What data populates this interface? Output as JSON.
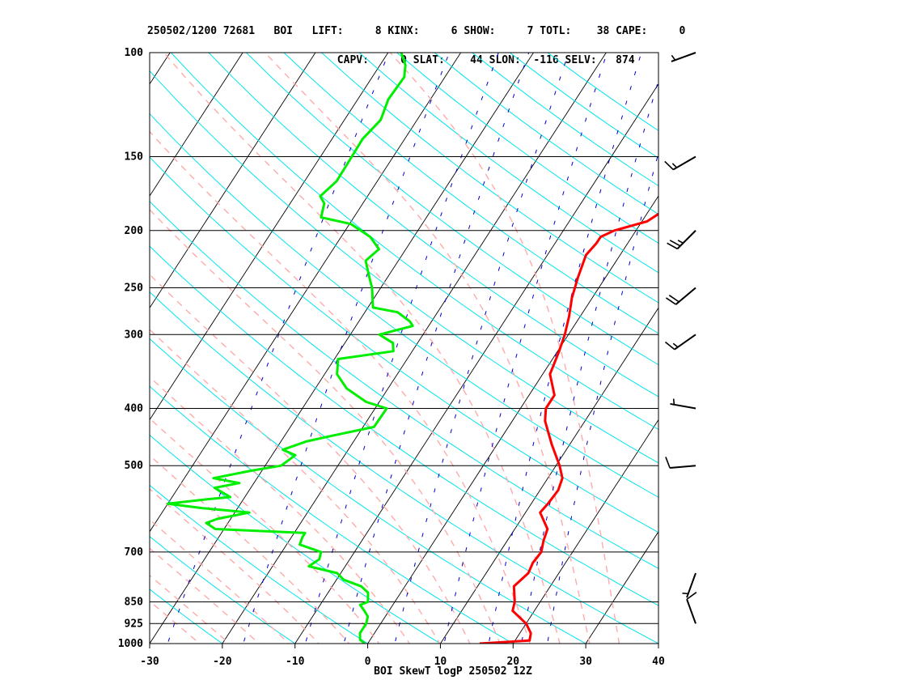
{
  "header": {
    "line1": "250502/1200 72681   BOI   LIFT:     8 KINX:     6 SHOW:     7 TOTL:    38 CAPE:     0",
    "line2": "                              CAPV:     0 SLAT:    44 SLON:  -116 SELV:   874"
  },
  "chart_data": {
    "type": "line",
    "title": "BOI SkewT logP 250502 12Z",
    "xlabel": "",
    "ylabel": "",
    "x_range": [
      -30,
      40
    ],
    "p_range": [
      1000,
      100
    ],
    "x_ticks": [
      "-30",
      "-20",
      "-10",
      "0",
      "10",
      "20",
      "30",
      "40"
    ],
    "p_ticks": [
      "100",
      "150",
      "200",
      "250",
      "300",
      "400",
      "500",
      "700",
      "850",
      "925",
      "1000"
    ],
    "colors": {
      "temperature": "#ff0000",
      "dewpoint": "#00ee00",
      "isotherm": "#000000",
      "dry_adiabat": "#00e5ee",
      "moist_adiabat": "#ffaaaa",
      "mixing_ratio": "#0000cc"
    },
    "series": [
      {
        "key": "temperature",
        "points": [
          [
            1000,
            15.4
          ],
          [
            988,
            22.0
          ],
          [
            960,
            21.5
          ],
          [
            925,
            20.0
          ],
          [
            880,
            17.0
          ],
          [
            850,
            16.5
          ],
          [
            800,
            15.0
          ],
          [
            760,
            15.8
          ],
          [
            730,
            15.5
          ],
          [
            700,
            15.7
          ],
          [
            670,
            15.0
          ],
          [
            640,
            14.5
          ],
          [
            600,
            12.0
          ],
          [
            580,
            12.3
          ],
          [
            550,
            12.5
          ],
          [
            525,
            12.0
          ],
          [
            500,
            10.5
          ],
          [
            460,
            7.5
          ],
          [
            420,
            4.5
          ],
          [
            400,
            3.5
          ],
          [
            380,
            3.5
          ],
          [
            350,
            1.0
          ],
          [
            320,
            0.2
          ],
          [
            300,
            -0.5
          ],
          [
            280,
            -1.5
          ],
          [
            260,
            -2.8
          ],
          [
            240,
            -3.8
          ],
          [
            220,
            -4.7
          ],
          [
            210,
            -4.3
          ],
          [
            205,
            -4.3
          ],
          [
            200,
            -3.0
          ],
          [
            193,
            0.7
          ],
          [
            184,
            2.2
          ],
          [
            180,
            3.7
          ],
          [
            170,
            8.3
          ],
          [
            155,
            9.6
          ],
          [
            140,
            9.6
          ],
          [
            130,
            10.6
          ],
          [
            115,
            12.0
          ],
          [
            105,
            13.0
          ],
          [
            100,
            14.4
          ]
        ]
      },
      {
        "key": "dewpoint",
        "points": [
          [
            1000,
            -0.4
          ],
          [
            985,
            -1.4
          ],
          [
            960,
            -2.0
          ],
          [
            925,
            -2.0
          ],
          [
            900,
            -2.4
          ],
          [
            880,
            -3.4
          ],
          [
            860,
            -4.5
          ],
          [
            850,
            -3.7
          ],
          [
            820,
            -4.5
          ],
          [
            800,
            -6.0
          ],
          [
            780,
            -9.0
          ],
          [
            760,
            -10.5
          ],
          [
            740,
            -15.0
          ],
          [
            720,
            -14.2
          ],
          [
            700,
            -14.6
          ],
          [
            680,
            -18.2
          ],
          [
            660,
            -18.5
          ],
          [
            650,
            -18.5
          ],
          [
            640,
            -31.2
          ],
          [
            625,
            -33.0
          ],
          [
            615,
            -31.8
          ],
          [
            600,
            -28.0
          ],
          [
            590,
            -34.8
          ],
          [
            580,
            -40.0
          ],
          [
            570,
            -35.0
          ],
          [
            565,
            -32.0
          ],
          [
            555,
            -33.5
          ],
          [
            545,
            -35.0
          ],
          [
            535,
            -32.0
          ],
          [
            525,
            -36.0
          ],
          [
            510,
            -31.5
          ],
          [
            500,
            -27.8
          ],
          [
            480,
            -26.8
          ],
          [
            470,
            -29.0
          ],
          [
            455,
            -26.5
          ],
          [
            445,
            -23.5
          ],
          [
            430,
            -18.5
          ],
          [
            400,
            -18.4
          ],
          [
            390,
            -21.8
          ],
          [
            370,
            -25.7
          ],
          [
            350,
            -28.3
          ],
          [
            330,
            -29.5
          ],
          [
            320,
            -22.6
          ],
          [
            310,
            -23.4
          ],
          [
            300,
            -26.0
          ],
          [
            290,
            -22.2
          ],
          [
            285,
            -23.0
          ],
          [
            275,
            -25.5
          ],
          [
            270,
            -29.3
          ],
          [
            250,
            -31.2
          ],
          [
            240,
            -32.5
          ],
          [
            225,
            -34.5
          ],
          [
            215,
            -33.7
          ],
          [
            205,
            -36.0
          ],
          [
            195,
            -39.8
          ],
          [
            190,
            -44.5
          ],
          [
            180,
            -45.3
          ],
          [
            175,
            -46.5
          ],
          [
            165,
            -45.6
          ],
          [
            150,
            -45.7
          ],
          [
            140,
            -45.8
          ],
          [
            130,
            -45.0
          ],
          [
            120,
            -45.8
          ],
          [
            110,
            -45.6
          ],
          [
            105,
            -46.5
          ],
          [
            100,
            -48.2
          ]
        ]
      }
    ],
    "wind_barbs": [
      {
        "p": 925,
        "dir": 340,
        "speed": 10
      },
      {
        "p": 760,
        "dir": 200,
        "speed": 5
      },
      {
        "p": 500,
        "dir": 265,
        "speed": 10
      },
      {
        "p": 400,
        "dir": 280,
        "speed": 5
      },
      {
        "p": 300,
        "dir": 235,
        "speed": 15
      },
      {
        "p": 250,
        "dir": 230,
        "speed": 20
      },
      {
        "p": 200,
        "dir": 225,
        "speed": 25
      },
      {
        "p": 150,
        "dir": 240,
        "speed": 15
      },
      {
        "p": 100,
        "dir": 250,
        "speed": 5
      }
    ]
  }
}
